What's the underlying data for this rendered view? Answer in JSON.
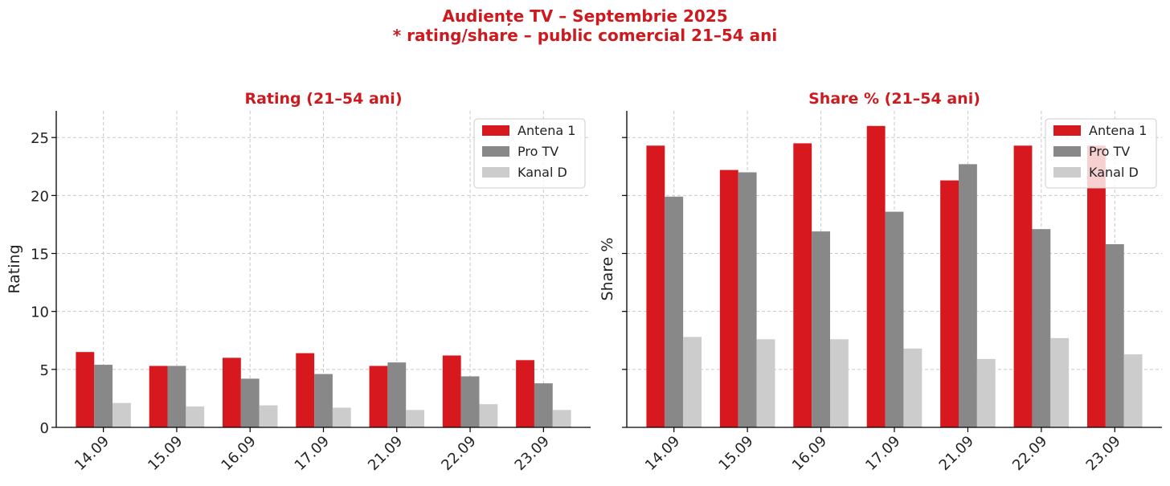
{
  "title": {
    "line1": "Audiențe TV – Septembrie 2025",
    "line2": "* rating/share – public comercial 21–54 ani"
  },
  "colors": {
    "title": "#cc1a1f",
    "series": [
      "#d7191f",
      "#888888",
      "#cccccc"
    ]
  },
  "chart_data": [
    {
      "type": "bar",
      "title": "Rating (21–54 ani)",
      "xlabel": "",
      "ylabel": "Rating",
      "categories": [
        "14.09",
        "15.09",
        "16.09",
        "17.09",
        "21.09",
        "22.09",
        "23.09"
      ],
      "ylim": [
        0,
        27.3
      ],
      "yticks": [
        0,
        5,
        10,
        15,
        20,
        25
      ],
      "show_ytick_labels": true,
      "grid": true,
      "legend": "top-right",
      "series": [
        {
          "name": "Antena 1",
          "values": [
            6.5,
            5.3,
            6.0,
            6.4,
            5.3,
            6.2,
            5.8
          ]
        },
        {
          "name": "Pro TV",
          "values": [
            5.4,
            5.3,
            4.2,
            4.6,
            5.6,
            4.4,
            3.8
          ]
        },
        {
          "name": "Kanal D",
          "values": [
            2.1,
            1.8,
            1.9,
            1.7,
            1.5,
            2.0,
            1.5
          ]
        }
      ]
    },
    {
      "type": "bar",
      "title": "Share % (21–54 ani)",
      "xlabel": "",
      "ylabel": "Share %",
      "categories": [
        "14.09",
        "15.09",
        "16.09",
        "17.09",
        "21.09",
        "22.09",
        "23.09"
      ],
      "ylim": [
        0,
        27.3
      ],
      "yticks": [
        0,
        5,
        10,
        15,
        20,
        25
      ],
      "show_ytick_labels": false,
      "grid": true,
      "legend": "top-right",
      "series": [
        {
          "name": "Antena 1",
          "values": [
            24.3,
            22.2,
            24.5,
            26.0,
            21.3,
            24.3,
            24.3
          ]
        },
        {
          "name": "Pro TV",
          "values": [
            19.9,
            22.0,
            16.9,
            18.6,
            22.7,
            17.1,
            15.8
          ]
        },
        {
          "name": "Kanal D",
          "values": [
            7.8,
            7.6,
            7.6,
            6.8,
            5.9,
            7.7,
            6.3
          ]
        }
      ]
    }
  ]
}
